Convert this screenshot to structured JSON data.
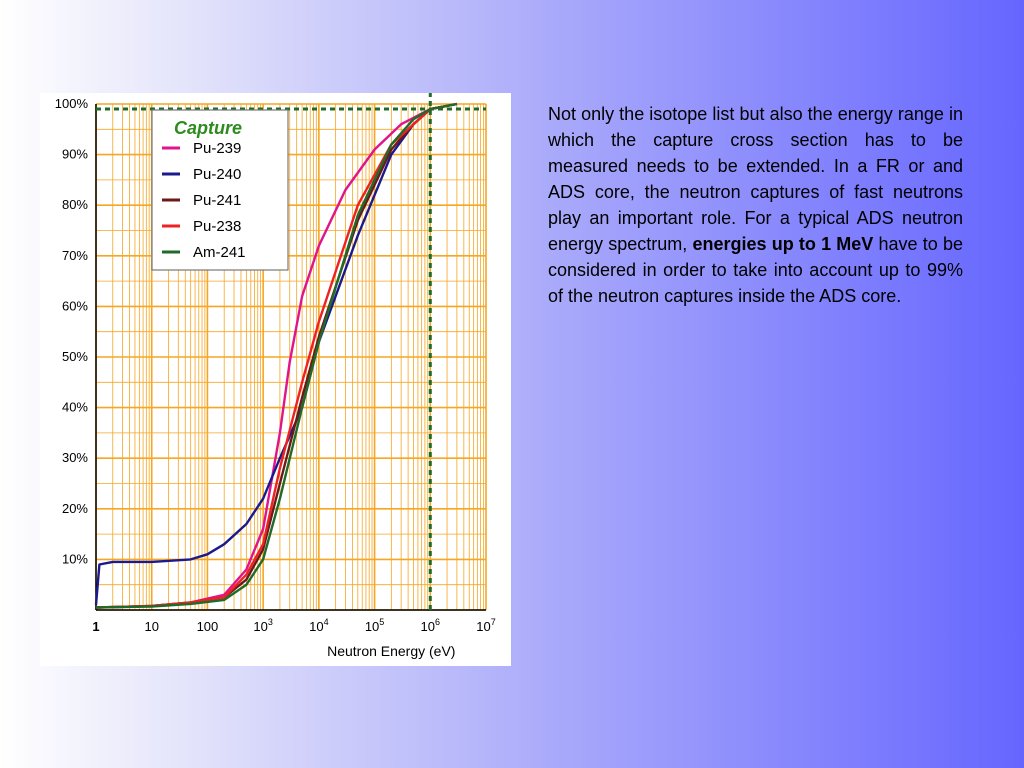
{
  "description": {
    "text_before": "Not only the isotope list but also the energy range in which the capture cross section has to be measured needs to be extended. In a FR or and ADS core, the neutron captures of fast neutrons play an important role. For a typical ADS neutron energy spectrum, ",
    "text_bold": "energies up to 1 MeV",
    "text_after": " have to be considered in order to take into account up to 99% of the neutron captures inside the ADS core."
  },
  "colors": {
    "grid": "#f5a623",
    "Pu-239": "#e0158c",
    "Pu-240": "#1a1a8c",
    "Pu-241": "#6b1a1a",
    "Pu-238": "#ee2222",
    "Am-241": "#1f6b2a",
    "legend_title": "#2e8b1e"
  },
  "chart_data": {
    "type": "line",
    "title": "",
    "xlabel": "Neutron Energy (eV)",
    "ylabel": "",
    "x_scale": "log",
    "xlim": [
      1,
      10000000
    ],
    "ylim": [
      0,
      100
    ],
    "grid": true,
    "legend_title": "Capture",
    "legend_position": "top-left",
    "x_tick_labels": [
      {
        "base": "1",
        "exp": ""
      },
      {
        "base": "10",
        "exp": ""
      },
      {
        "base": "100",
        "exp": ""
      },
      {
        "base": "10",
        "exp": "3"
      },
      {
        "base": "10",
        "exp": "4"
      },
      {
        "base": "10",
        "exp": "5"
      },
      {
        "base": "10",
        "exp": "6"
      },
      {
        "base": "10",
        "exp": "7"
      }
    ],
    "y_tick_labels": [
      "10%",
      "20%",
      "30%",
      "40%",
      "50%",
      "60%",
      "70%",
      "80%",
      "90%",
      "100%"
    ],
    "annotations": [
      {
        "type": "hline",
        "y": 99,
        "style": "dashed",
        "color": "#1f6b2a"
      },
      {
        "type": "vline",
        "x": 1000000,
        "style": "dashed",
        "color": "#1f6b2a"
      }
    ],
    "series": [
      {
        "name": "Pu-239",
        "x": [
          1,
          10,
          50,
          200,
          500,
          1000,
          2000,
          3000,
          5000,
          10000,
          30000,
          100000,
          300000,
          1000000,
          3000000
        ],
        "y": [
          0.5,
          0.8,
          1.5,
          3,
          8,
          16,
          35,
          49,
          62,
          72,
          83,
          91,
          96,
          99,
          100
        ]
      },
      {
        "name": "Pu-240",
        "x": [
          1,
          1.15,
          2,
          10,
          50,
          100,
          200,
          500,
          1000,
          2000,
          5000,
          10000,
          50000,
          200000,
          500000,
          1000000,
          3000000
        ],
        "y": [
          1,
          9,
          9.5,
          9.5,
          10,
          11,
          13,
          17,
          22,
          30,
          40,
          53,
          74,
          90,
          96,
          99,
          100
        ]
      },
      {
        "name": "Pu-241",
        "x": [
          1,
          10,
          50,
          200,
          500,
          1000,
          2000,
          5000,
          10000,
          50000,
          200000,
          500000,
          1000000,
          3000000
        ],
        "y": [
          0.5,
          0.8,
          1.5,
          2.5,
          6,
          12,
          25,
          42,
          54,
          77,
          91,
          96,
          99,
          100
        ]
      },
      {
        "name": "Pu-238",
        "x": [
          1,
          10,
          50,
          200,
          500,
          1000,
          2000,
          5000,
          10000,
          50000,
          200000,
          500000,
          1000000,
          3000000
        ],
        "y": [
          0.5,
          0.8,
          1.5,
          2.5,
          7,
          13,
          28,
          45,
          57,
          80,
          92,
          96,
          99,
          100
        ]
      },
      {
        "name": "Am-241",
        "x": [
          1,
          10,
          50,
          200,
          500,
          1000,
          2000,
          5000,
          10000,
          50000,
          200000,
          500000,
          1000000,
          3000000
        ],
        "y": [
          0.5,
          0.7,
          1.2,
          2,
          5,
          10,
          22,
          40,
          53,
          78,
          92,
          97,
          99,
          100
        ]
      }
    ]
  }
}
